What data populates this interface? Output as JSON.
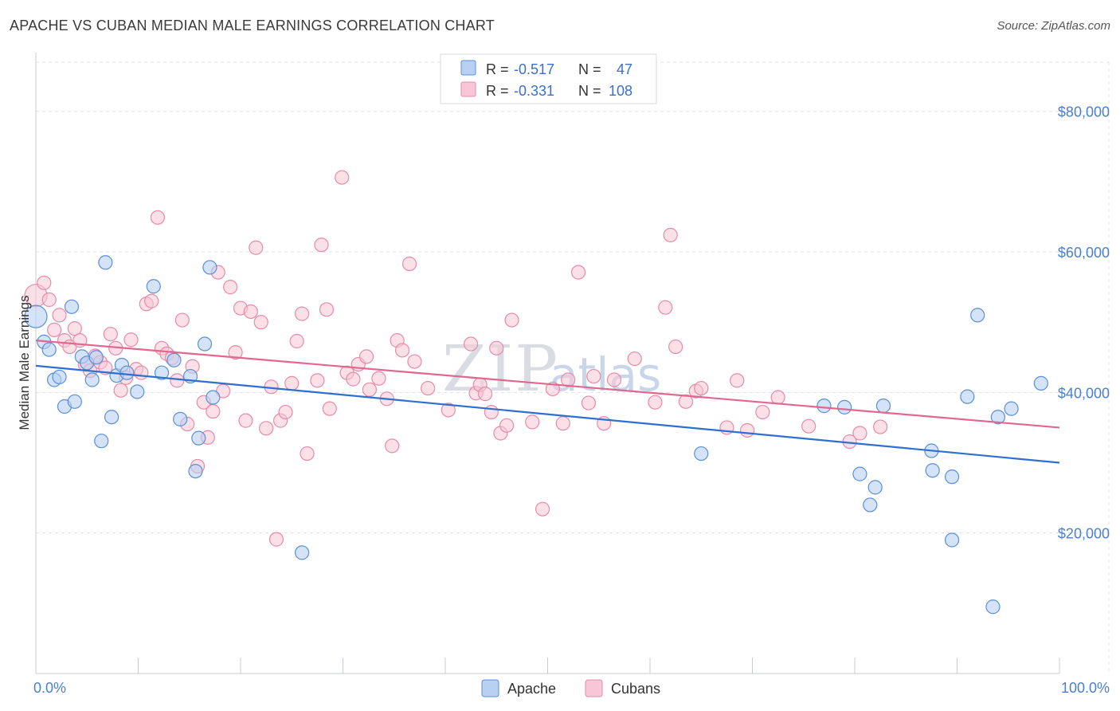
{
  "header": {
    "title": "APACHE VS CUBAN MEDIAN MALE EARNINGS CORRELATION CHART",
    "source": "Source: ZipAtlas.com"
  },
  "colors": {
    "apache": "#5b8fd6",
    "apache_fill": "#b8d0f2",
    "apache_line": "#2e6fd0",
    "cubans": "#e88aa8",
    "cubans_fill": "#f8c6d6",
    "cubans_line": "#e06890",
    "grid": "#dde1e6",
    "tick_text": "#4a7fd0"
  },
  "legend": {
    "rows": [
      {
        "r_label": "R = ",
        "r_value": "-0.517",
        "n_label": "N = ",
        "n_value": "47"
      },
      {
        "r_label": "R = ",
        "r_value": "-0.331",
        "n_label": "N = ",
        "n_value": "108"
      }
    ]
  },
  "watermark": {
    "zip": "ZIP",
    "atlas": "atlas"
  },
  "chart_data": {
    "type": "scatter",
    "title": "APACHE VS CUBAN MEDIAN MALE EARNINGS CORRELATION CHART",
    "xlabel": "",
    "ylabel": "Median Male Earnings",
    "xlim": [
      0,
      100
    ],
    "ylim": [
      0,
      87000
    ],
    "x_tick_labels": [
      "0.0%",
      "100.0%"
    ],
    "y_ticks": [
      20000,
      40000,
      60000,
      80000
    ],
    "y_tick_labels": [
      "$20,000",
      "$40,000",
      "$60,000",
      "$80,000"
    ],
    "grid": true,
    "legend_position": "top-center",
    "series": [
      {
        "name": "Apache",
        "r": -0.517,
        "n": 47,
        "trend": [
          [
            0,
            43800
          ],
          [
            100,
            30000
          ]
        ],
        "points": [
          [
            0,
            50800
          ],
          [
            0.8,
            47200
          ],
          [
            1.3,
            46100
          ],
          [
            1.8,
            41800
          ],
          [
            2.3,
            42200
          ],
          [
            2.8,
            38000
          ],
          [
            3.5,
            52200
          ],
          [
            3.8,
            38700
          ],
          [
            4.5,
            45100
          ],
          [
            5.0,
            44200
          ],
          [
            5.5,
            41800
          ],
          [
            5.9,
            45000
          ],
          [
            6.4,
            33100
          ],
          [
            6.8,
            58500
          ],
          [
            7.4,
            36500
          ],
          [
            7.9,
            42400
          ],
          [
            8.4,
            43900
          ],
          [
            8.9,
            42800
          ],
          [
            9.9,
            40100
          ],
          [
            11.5,
            55100
          ],
          [
            12.3,
            42800
          ],
          [
            13.5,
            44600
          ],
          [
            14.1,
            36200
          ],
          [
            15.1,
            42300
          ],
          [
            15.6,
            28800
          ],
          [
            15.9,
            33500
          ],
          [
            16.5,
            46900
          ],
          [
            17.0,
            57800
          ],
          [
            17.3,
            39300
          ],
          [
            26.0,
            17200
          ],
          [
            65.0,
            31300
          ],
          [
            77.0,
            38100
          ],
          [
            79.0,
            37900
          ],
          [
            80.5,
            28400
          ],
          [
            81.5,
            24000
          ],
          [
            82.0,
            26500
          ],
          [
            82.8,
            38100
          ],
          [
            87.5,
            31700
          ],
          [
            87.6,
            28900
          ],
          [
            89.5,
            28000
          ],
          [
            89.5,
            19000
          ],
          [
            91.0,
            39400
          ],
          [
            92.0,
            51000
          ],
          [
            93.5,
            9500
          ],
          [
            94.0,
            36500
          ],
          [
            95.3,
            37700
          ],
          [
            98.2,
            41300
          ]
        ]
      },
      {
        "name": "Cubans",
        "r": -0.331,
        "n": 108,
        "trend": [
          [
            0,
            47400
          ],
          [
            100,
            35000
          ]
        ],
        "points": [
          [
            0,
            53800
          ],
          [
            0.8,
            55600
          ],
          [
            1.3,
            53200
          ],
          [
            1.8,
            48900
          ],
          [
            2.3,
            51000
          ],
          [
            2.8,
            47400
          ],
          [
            3.3,
            46500
          ],
          [
            3.8,
            49100
          ],
          [
            4.3,
            47400
          ],
          [
            4.8,
            44000
          ],
          [
            5.3,
            43100
          ],
          [
            5.8,
            45200
          ],
          [
            6.3,
            44300
          ],
          [
            6.8,
            43500
          ],
          [
            7.3,
            48300
          ],
          [
            7.8,
            46300
          ],
          [
            8.3,
            40300
          ],
          [
            8.8,
            42100
          ],
          [
            9.3,
            47500
          ],
          [
            9.8,
            43300
          ],
          [
            10.3,
            42800
          ],
          [
            10.8,
            52600
          ],
          [
            11.3,
            53000
          ],
          [
            11.9,
            64900
          ],
          [
            12.3,
            46300
          ],
          [
            12.8,
            45500
          ],
          [
            13.3,
            44900
          ],
          [
            13.8,
            41700
          ],
          [
            14.3,
            50300
          ],
          [
            14.8,
            35500
          ],
          [
            15.3,
            43700
          ],
          [
            15.8,
            29500
          ],
          [
            16.4,
            38600
          ],
          [
            16.8,
            33600
          ],
          [
            17.3,
            37300
          ],
          [
            17.8,
            57100
          ],
          [
            18.3,
            40200
          ],
          [
            19.0,
            55000
          ],
          [
            19.5,
            45700
          ],
          [
            20.0,
            52000
          ],
          [
            20.5,
            36000
          ],
          [
            21.0,
            51500
          ],
          [
            21.5,
            60600
          ],
          [
            22.0,
            50000
          ],
          [
            22.5,
            34900
          ],
          [
            23.0,
            40800
          ],
          [
            23.5,
            19100
          ],
          [
            23.9,
            36000
          ],
          [
            24.4,
            37200
          ],
          [
            25.0,
            41300
          ],
          [
            25.5,
            47300
          ],
          [
            26.0,
            51200
          ],
          [
            26.5,
            31300
          ],
          [
            27.5,
            41700
          ],
          [
            27.9,
            61000
          ],
          [
            28.4,
            51800
          ],
          [
            28.7,
            37700
          ],
          [
            29.9,
            70600
          ],
          [
            30.4,
            42800
          ],
          [
            31.0,
            41900
          ],
          [
            31.5,
            44000
          ],
          [
            32.3,
            45100
          ],
          [
            32.6,
            40400
          ],
          [
            33.5,
            42000
          ],
          [
            34.3,
            39100
          ],
          [
            34.8,
            32400
          ],
          [
            35.3,
            47400
          ],
          [
            35.8,
            46000
          ],
          [
            36.5,
            58300
          ],
          [
            37.0,
            44400
          ],
          [
            38.3,
            40600
          ],
          [
            40.3,
            37500
          ],
          [
            42.5,
            46900
          ],
          [
            43.0,
            39900
          ],
          [
            43.4,
            41100
          ],
          [
            43.9,
            39800
          ],
          [
            44.5,
            37200
          ],
          [
            45.0,
            46300
          ],
          [
            45.4,
            34200
          ],
          [
            46.0,
            35300
          ],
          [
            46.5,
            50300
          ],
          [
            48.5,
            35800
          ],
          [
            49.5,
            23400
          ],
          [
            50.5,
            40500
          ],
          [
            51.5,
            35600
          ],
          [
            52.0,
            41800
          ],
          [
            53.0,
            57100
          ],
          [
            54.0,
            38500
          ],
          [
            54.5,
            42300
          ],
          [
            55.5,
            35600
          ],
          [
            56.5,
            41800
          ],
          [
            58.5,
            44800
          ],
          [
            60.5,
            38600
          ],
          [
            61.5,
            52100
          ],
          [
            62.0,
            62400
          ],
          [
            62.5,
            46500
          ],
          [
            63.5,
            38700
          ],
          [
            64.5,
            40200
          ],
          [
            65.0,
            40600
          ],
          [
            67.5,
            35000
          ],
          [
            68.5,
            41700
          ],
          [
            69.5,
            34600
          ],
          [
            71.0,
            37200
          ],
          [
            72.5,
            39300
          ],
          [
            75.5,
            35200
          ],
          [
            79.5,
            33000
          ],
          [
            80.5,
            34200
          ],
          [
            82.5,
            35100
          ]
        ]
      }
    ]
  },
  "bottom_legend": {
    "apache": "Apache",
    "cubans": "Cubans"
  }
}
